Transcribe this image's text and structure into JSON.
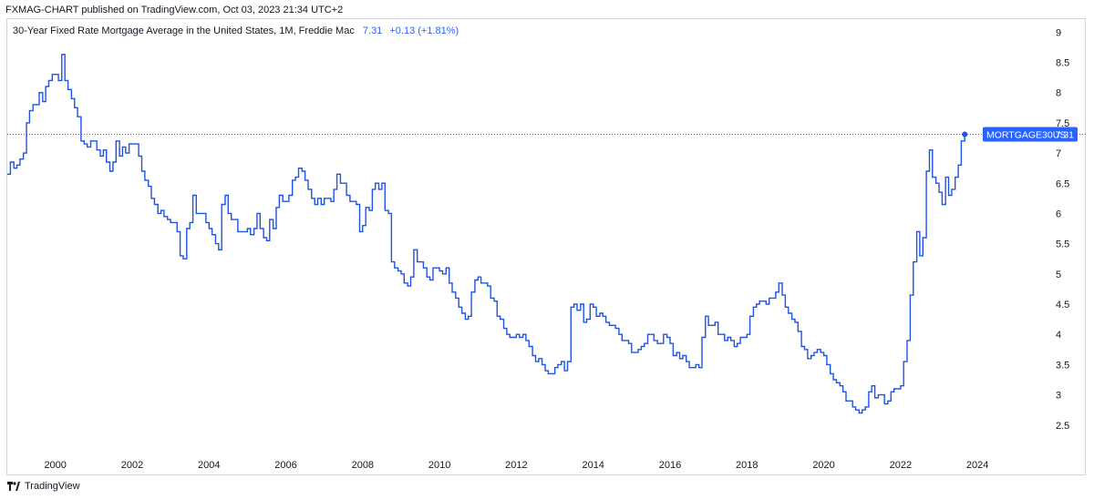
{
  "header": {
    "published": "FXMAG-CHART published on TradingView.com, Oct 03, 2023 21:34 UTC+2"
  },
  "legend": {
    "title": "30-Year Fixed Rate Mortgage Average in the United States, 1M, Freddie Mac",
    "last_value": "7.31",
    "change": "+0.13 (+1.81%)"
  },
  "badge": {
    "symbol": "MORTGAGE30US",
    "value": "7.31"
  },
  "footer": {
    "brand": "TradingView"
  },
  "colors": {
    "line": "#1e53e5",
    "accent": "#2962ff",
    "text": "#131722",
    "border": "#d1d4dc"
  },
  "chart_data": {
    "type": "line",
    "step": true,
    "title": "30-Year Fixed Rate Mortgage Average in the United States, 1M, Freddie Mac",
    "xlabel": "",
    "ylabel": "",
    "xlim": [
      1998.75,
      2025.8
    ],
    "ylim": [
      2.0,
      9.2
    ],
    "y_ticks": [
      2.5,
      3,
      3.5,
      4,
      4.5,
      5,
      5.5,
      6,
      6.5,
      7,
      7.5,
      8,
      8.5,
      9
    ],
    "y_tick_labels": [
      "2.5",
      "3",
      "3.5",
      "4",
      "4.5",
      "5",
      "5.5",
      "6",
      "6.5",
      "7",
      "7.5",
      "8",
      "8.5",
      "9"
    ],
    "x_ticks": [
      2000,
      2002,
      2004,
      2006,
      2008,
      2010,
      2012,
      2014,
      2016,
      2018,
      2020,
      2022,
      2024
    ],
    "x_tick_labels": [
      "2000",
      "2002",
      "2004",
      "2006",
      "2008",
      "2010",
      "2012",
      "2014",
      "2016",
      "2018",
      "2020",
      "2022",
      "2024"
    ],
    "grid": false,
    "last_value_line": 7.31,
    "series": [
      {
        "name": "MORTGAGE30US",
        "x": [
          1998.75,
          1998.83,
          1998.92,
          1999.0,
          1999.08,
          1999.17,
          1999.25,
          1999.33,
          1999.42,
          1999.5,
          1999.58,
          1999.67,
          1999.75,
          1999.83,
          1999.92,
          2000.0,
          2000.08,
          2000.17,
          2000.25,
          2000.33,
          2000.42,
          2000.5,
          2000.58,
          2000.67,
          2000.75,
          2000.83,
          2000.92,
          2001.0,
          2001.08,
          2001.17,
          2001.25,
          2001.33,
          2001.42,
          2001.5,
          2001.58,
          2001.67,
          2001.75,
          2001.83,
          2001.92,
          2002.0,
          2002.08,
          2002.17,
          2002.25,
          2002.33,
          2002.42,
          2002.5,
          2002.58,
          2002.67,
          2002.75,
          2002.83,
          2002.92,
          2003.0,
          2003.08,
          2003.17,
          2003.25,
          2003.33,
          2003.42,
          2003.5,
          2003.58,
          2003.67,
          2003.75,
          2003.83,
          2003.92,
          2004.0,
          2004.08,
          2004.17,
          2004.25,
          2004.33,
          2004.42,
          2004.5,
          2004.58,
          2004.67,
          2004.75,
          2004.83,
          2004.92,
          2005.0,
          2005.08,
          2005.17,
          2005.25,
          2005.33,
          2005.42,
          2005.5,
          2005.58,
          2005.67,
          2005.75,
          2005.83,
          2005.92,
          2006.0,
          2006.08,
          2006.17,
          2006.25,
          2006.33,
          2006.42,
          2006.5,
          2006.58,
          2006.67,
          2006.75,
          2006.83,
          2006.92,
          2007.0,
          2007.08,
          2007.17,
          2007.25,
          2007.33,
          2007.42,
          2007.5,
          2007.58,
          2007.67,
          2007.75,
          2007.83,
          2007.92,
          2008.0,
          2008.08,
          2008.17,
          2008.25,
          2008.33,
          2008.42,
          2008.5,
          2008.58,
          2008.67,
          2008.75,
          2008.83,
          2008.92,
          2009.0,
          2009.08,
          2009.17,
          2009.25,
          2009.33,
          2009.42,
          2009.5,
          2009.58,
          2009.67,
          2009.75,
          2009.83,
          2009.92,
          2010.0,
          2010.08,
          2010.17,
          2010.25,
          2010.33,
          2010.42,
          2010.5,
          2010.58,
          2010.67,
          2010.75,
          2010.83,
          2010.92,
          2011.0,
          2011.08,
          2011.17,
          2011.25,
          2011.33,
          2011.42,
          2011.5,
          2011.58,
          2011.67,
          2011.75,
          2011.83,
          2011.92,
          2012.0,
          2012.08,
          2012.17,
          2012.25,
          2012.33,
          2012.42,
          2012.5,
          2012.58,
          2012.67,
          2012.75,
          2012.83,
          2012.92,
          2013.0,
          2013.08,
          2013.17,
          2013.25,
          2013.33,
          2013.42,
          2013.5,
          2013.58,
          2013.67,
          2013.75,
          2013.83,
          2013.92,
          2014.0,
          2014.08,
          2014.17,
          2014.25,
          2014.33,
          2014.42,
          2014.5,
          2014.58,
          2014.67,
          2014.75,
          2014.83,
          2014.92,
          2015.0,
          2015.08,
          2015.17,
          2015.25,
          2015.33,
          2015.42,
          2015.5,
          2015.58,
          2015.67,
          2015.75,
          2015.83,
          2015.92,
          2016.0,
          2016.08,
          2016.17,
          2016.25,
          2016.33,
          2016.42,
          2016.5,
          2016.58,
          2016.67,
          2016.75,
          2016.83,
          2016.92,
          2017.0,
          2017.08,
          2017.17,
          2017.25,
          2017.33,
          2017.42,
          2017.5,
          2017.58,
          2017.67,
          2017.75,
          2017.83,
          2017.92,
          2018.0,
          2018.08,
          2018.17,
          2018.25,
          2018.33,
          2018.42,
          2018.5,
          2018.58,
          2018.67,
          2018.75,
          2018.83,
          2018.92,
          2019.0,
          2019.08,
          2019.17,
          2019.25,
          2019.33,
          2019.42,
          2019.5,
          2019.58,
          2019.67,
          2019.75,
          2019.83,
          2019.92,
          2020.0,
          2020.08,
          2020.17,
          2020.25,
          2020.33,
          2020.42,
          2020.5,
          2020.58,
          2020.67,
          2020.75,
          2020.83,
          2020.92,
          2021.0,
          2021.08,
          2021.17,
          2021.25,
          2021.33,
          2021.42,
          2021.5,
          2021.58,
          2021.67,
          2021.75,
          2021.83,
          2021.92,
          2022.0,
          2022.08,
          2022.17,
          2022.25,
          2022.33,
          2022.42,
          2022.5,
          2022.58,
          2022.67,
          2022.75,
          2022.83,
          2022.92,
          2023.0,
          2023.08,
          2023.17,
          2023.25,
          2023.33,
          2023.42,
          2023.5,
          2023.58,
          2023.67
        ],
        "values": [
          6.65,
          6.85,
          6.75,
          6.8,
          6.9,
          7.0,
          7.5,
          7.7,
          7.8,
          7.8,
          8.0,
          7.85,
          8.1,
          8.2,
          8.3,
          8.3,
          8.2,
          8.63,
          8.2,
          8.05,
          7.9,
          7.75,
          7.6,
          7.2,
          7.15,
          7.1,
          7.2,
          7.2,
          7.05,
          6.95,
          7.05,
          6.85,
          6.7,
          6.85,
          7.2,
          6.95,
          7.1,
          7.0,
          7.15,
          7.15,
          7.15,
          6.95,
          6.7,
          6.55,
          6.45,
          6.25,
          6.15,
          6.0,
          6.05,
          5.95,
          5.9,
          5.85,
          5.85,
          5.7,
          5.3,
          5.25,
          5.75,
          5.85,
          6.3,
          6.0,
          6.0,
          6.0,
          5.85,
          5.75,
          5.65,
          5.5,
          5.4,
          6.15,
          6.3,
          6.0,
          5.9,
          5.9,
          5.7,
          5.7,
          5.7,
          5.75,
          5.65,
          5.75,
          6.0,
          5.75,
          5.6,
          5.55,
          5.9,
          5.75,
          6.1,
          6.3,
          6.2,
          6.2,
          6.3,
          6.55,
          6.6,
          6.75,
          6.7,
          6.55,
          6.4,
          6.25,
          6.15,
          6.25,
          6.15,
          6.25,
          6.25,
          6.2,
          6.4,
          6.65,
          6.5,
          6.5,
          6.3,
          6.2,
          6.2,
          6.15,
          5.7,
          5.8,
          6.1,
          6.05,
          6.4,
          6.5,
          6.4,
          6.5,
          6.05,
          6.0,
          5.2,
          5.1,
          5.05,
          5.0,
          4.85,
          4.8,
          4.95,
          5.4,
          5.2,
          5.2,
          5.1,
          4.95,
          4.9,
          5.1,
          5.1,
          5.05,
          5.0,
          5.1,
          4.85,
          4.7,
          4.6,
          4.45,
          4.35,
          4.25,
          4.3,
          4.7,
          4.9,
          4.95,
          4.85,
          4.85,
          4.8,
          4.6,
          4.55,
          4.3,
          4.25,
          4.1,
          4.0,
          3.95,
          3.95,
          4.0,
          3.95,
          4.0,
          3.9,
          3.8,
          3.65,
          3.55,
          3.6,
          3.5,
          3.4,
          3.35,
          3.35,
          3.45,
          3.5,
          3.55,
          3.4,
          3.55,
          4.45,
          4.5,
          4.4,
          4.5,
          4.2,
          4.25,
          4.5,
          4.45,
          4.3,
          4.35,
          4.3,
          4.2,
          4.15,
          4.15,
          4.1,
          4.0,
          3.9,
          3.9,
          3.85,
          3.7,
          3.7,
          3.75,
          3.8,
          3.85,
          4.0,
          4.0,
          3.9,
          3.85,
          3.85,
          4.0,
          3.95,
          3.85,
          3.65,
          3.7,
          3.6,
          3.65,
          3.55,
          3.45,
          3.45,
          3.5,
          3.45,
          3.95,
          4.3,
          4.15,
          4.15,
          4.2,
          4.0,
          4.0,
          3.9,
          3.95,
          3.9,
          3.8,
          3.85,
          3.95,
          3.95,
          4.0,
          4.3,
          4.45,
          4.5,
          4.55,
          4.55,
          4.5,
          4.6,
          4.6,
          4.7,
          4.85,
          4.65,
          4.45,
          4.35,
          4.25,
          4.2,
          4.05,
          3.8,
          3.75,
          3.6,
          3.65,
          3.7,
          3.75,
          3.7,
          3.65,
          3.5,
          3.35,
          3.25,
          3.2,
          3.15,
          3.05,
          2.9,
          2.9,
          2.8,
          2.75,
          2.7,
          2.75,
          2.8,
          3.05,
          3.15,
          2.95,
          3.0,
          3.0,
          2.85,
          2.9,
          3.05,
          3.1,
          3.1,
          3.15,
          3.55,
          3.9,
          4.65,
          5.2,
          5.7,
          5.3,
          5.6,
          6.7,
          7.05,
          6.6,
          6.5,
          6.35,
          6.15,
          6.6,
          6.3,
          6.4,
          6.6,
          6.8,
          7.2,
          7.31
        ]
      }
    ]
  }
}
